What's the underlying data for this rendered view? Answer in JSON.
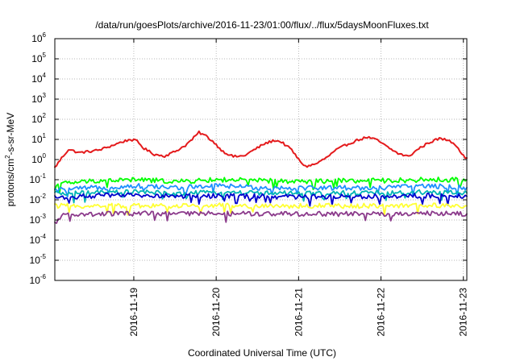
{
  "chart_data": {
    "type": "line",
    "title": "/data/run/goesPlots/archive/2016-11-23/01:00/flux/../flux/5daysMoonFluxes.txt",
    "xlabel": "Coordinated Universal Time (UTC)",
    "ylabel": "protons/cm2-s-sr-MeV",
    "ylabel_parts": {
      "pre": "protons/cm",
      "sup": "2",
      "post": "-s-sr-MeV"
    },
    "y_scale": "log",
    "ylim": [
      1e-06,
      1000000.0
    ],
    "y_ticks": [
      {
        "base": "10",
        "exp": "-6",
        "value": 1e-06
      },
      {
        "base": "10",
        "exp": "-5",
        "value": 1e-05
      },
      {
        "base": "10",
        "exp": "-4",
        "value": 0.0001
      },
      {
        "base": "10",
        "exp": "-3",
        "value": 0.001
      },
      {
        "base": "10",
        "exp": "-2",
        "value": 0.01
      },
      {
        "base": "10",
        "exp": "-1",
        "value": 0.1
      },
      {
        "base": "10",
        "exp": "0",
        "value": 1
      },
      {
        "base": "10",
        "exp": "1",
        "value": 10
      },
      {
        "base": "10",
        "exp": "2",
        "value": 100
      },
      {
        "base": "10",
        "exp": "3",
        "value": 1000
      },
      {
        "base": "10",
        "exp": "4",
        "value": 10000
      },
      {
        "base": "10",
        "exp": "5",
        "value": 100000
      },
      {
        "base": "10",
        "exp": "6",
        "value": 1000000
      }
    ],
    "xlim": [
      "2016-11-18T01:00",
      "2016-11-23T01:00"
    ],
    "x_ticks": [
      "2016-11-19",
      "2016-11-20",
      "2016-11-21",
      "2016-11-22",
      "2016-11-23"
    ],
    "grid": true,
    "legend": "none",
    "series": [
      {
        "color": "#e41a1c",
        "values": [
          [
            "2016-11-18T01:00",
            0.4
          ],
          [
            "2016-11-18T03:00",
            1.2
          ],
          [
            "2016-11-18T05:00",
            3.2
          ],
          [
            "2016-11-18T08:00",
            2.2
          ],
          [
            "2016-11-18T11:00",
            2.5
          ],
          [
            "2016-11-18T14:00",
            3.0
          ],
          [
            "2016-11-18T17:00",
            4.5
          ],
          [
            "2016-11-18T20:00",
            7.0
          ],
          [
            "2016-11-18T23:00",
            10.0
          ],
          [
            "2016-11-19T01:00",
            8.0
          ],
          [
            "2016-11-19T03:00",
            3.5
          ],
          [
            "2016-11-19T06:00",
            1.8
          ],
          [
            "2016-11-19T09:00",
            1.5
          ],
          [
            "2016-11-19T12:00",
            2.5
          ],
          [
            "2016-11-19T15:00",
            5.0
          ],
          [
            "2016-11-19T17:00",
            10.0
          ],
          [
            "2016-11-19T19:00",
            22.0
          ],
          [
            "2016-11-19T21:00",
            15.0
          ],
          [
            "2016-11-19T23:00",
            8.0
          ],
          [
            "2016-11-20T02:00",
            2.5
          ],
          [
            "2016-11-20T05:00",
            1.4
          ],
          [
            "2016-11-20T08:00",
            1.5
          ],
          [
            "2016-11-20T11:00",
            3.0
          ],
          [
            "2016-11-20T14:00",
            6.0
          ],
          [
            "2016-11-20T17:00",
            9.0
          ],
          [
            "2016-11-20T19:00",
            7.5
          ],
          [
            "2016-11-20T22:00",
            3.0
          ],
          [
            "2016-11-21T00:00",
            1.0
          ],
          [
            "2016-11-21T02:00",
            0.45
          ],
          [
            "2016-11-21T05:00",
            0.6
          ],
          [
            "2016-11-21T08:00",
            1.2
          ],
          [
            "2016-11-21T11:00",
            3.0
          ],
          [
            "2016-11-21T14:00",
            5.5
          ],
          [
            "2016-11-21T17:00",
            9.0
          ],
          [
            "2016-11-21T20:00",
            13.0
          ],
          [
            "2016-11-21T23:00",
            9.0
          ],
          [
            "2016-11-22T02:00",
            4.0
          ],
          [
            "2016-11-22T05:00",
            2.0
          ],
          [
            "2016-11-22T08:00",
            1.4
          ],
          [
            "2016-11-22T11:00",
            3.5
          ],
          [
            "2016-11-22T14:00",
            7.0
          ],
          [
            "2016-11-22T17:00",
            11.0
          ],
          [
            "2016-11-22T20:00",
            9.0
          ],
          [
            "2016-11-22T22:00",
            5.0
          ],
          [
            "2016-11-23T00:00",
            1.5
          ],
          [
            "2016-11-23T01:00",
            1.2
          ]
        ]
      },
      {
        "color": "#00ff00",
        "values": [
          [
            "2016-11-18T01:00",
            0.06
          ],
          [
            "2016-11-18T13:00",
            0.09
          ],
          [
            "2016-11-19T01:00",
            0.1
          ],
          [
            "2016-11-19T13:00",
            0.08
          ],
          [
            "2016-11-20T01:00",
            0.1
          ],
          [
            "2016-11-20T13:00",
            0.09
          ],
          [
            "2016-11-21T01:00",
            0.08
          ],
          [
            "2016-11-21T13:00",
            0.09
          ],
          [
            "2016-11-22T01:00",
            0.09
          ],
          [
            "2016-11-22T13:00",
            0.1
          ],
          [
            "2016-11-23T01:00",
            0.1
          ]
        ]
      },
      {
        "color": "#1e90ff",
        "values": [
          [
            "2016-11-18T01:00",
            0.03
          ],
          [
            "2016-11-18T13:00",
            0.04
          ],
          [
            "2016-11-19T01:00",
            0.05
          ],
          [
            "2016-11-19T13:00",
            0.04
          ],
          [
            "2016-11-20T01:00",
            0.05
          ],
          [
            "2016-11-20T13:00",
            0.04
          ],
          [
            "2016-11-21T01:00",
            0.04
          ],
          [
            "2016-11-21T13:00",
            0.04
          ],
          [
            "2016-11-22T01:00",
            0.04
          ],
          [
            "2016-11-22T13:00",
            0.05
          ],
          [
            "2016-11-23T01:00",
            0.04
          ]
        ]
      },
      {
        "color": "#00b4b4",
        "values": [
          [
            "2016-11-18T01:00",
            0.02
          ],
          [
            "2016-11-18T13:00",
            0.022
          ],
          [
            "2016-11-19T01:00",
            0.025
          ],
          [
            "2016-11-19T13:00",
            0.02
          ],
          [
            "2016-11-20T01:00",
            0.024
          ],
          [
            "2016-11-20T13:00",
            0.022
          ],
          [
            "2016-11-21T01:00",
            0.02
          ],
          [
            "2016-11-21T13:00",
            0.022
          ],
          [
            "2016-11-22T01:00",
            0.022
          ],
          [
            "2016-11-22T13:00",
            0.024
          ],
          [
            "2016-11-23T01:00",
            0.022
          ]
        ]
      },
      {
        "color": "#0000cd",
        "values": [
          [
            "2016-11-18T01:00",
            0.013
          ],
          [
            "2016-11-18T13:00",
            0.016
          ],
          [
            "2016-11-19T01:00",
            0.017
          ],
          [
            "2016-11-19T13:00",
            0.015
          ],
          [
            "2016-11-20T01:00",
            0.016
          ],
          [
            "2016-11-20T13:00",
            0.015
          ],
          [
            "2016-11-21T01:00",
            0.014
          ],
          [
            "2016-11-21T13:00",
            0.015
          ],
          [
            "2016-11-22T01:00",
            0.015
          ],
          [
            "2016-11-22T13:00",
            0.016
          ],
          [
            "2016-11-23T01:00",
            0.015
          ]
        ]
      },
      {
        "color": "#ffff33",
        "values": [
          [
            "2016-11-18T01:00",
            0.005
          ],
          [
            "2016-11-18T13:00",
            0.005
          ],
          [
            "2016-11-19T01:00",
            0.0052
          ],
          [
            "2016-11-19T13:00",
            0.005
          ],
          [
            "2016-11-20T01:00",
            0.0052
          ],
          [
            "2016-11-20T13:00",
            0.005
          ],
          [
            "2016-11-21T01:00",
            0.005
          ],
          [
            "2016-11-21T13:00",
            0.005
          ],
          [
            "2016-11-22T01:00",
            0.005
          ],
          [
            "2016-11-22T13:00",
            0.0052
          ],
          [
            "2016-11-23T01:00",
            0.005
          ]
        ]
      },
      {
        "color": "#8b3a8b",
        "values": [
          [
            "2016-11-18T01:00",
            0.0006
          ],
          [
            "2016-11-18T03:00",
            0.0018
          ],
          [
            "2016-11-18T13:00",
            0.002
          ],
          [
            "2016-11-19T01:00",
            0.0021
          ],
          [
            "2016-11-19T13:00",
            0.002
          ],
          [
            "2016-11-20T01:00",
            0.0021
          ],
          [
            "2016-11-20T13:00",
            0.002
          ],
          [
            "2016-11-21T01:00",
            0.002
          ],
          [
            "2016-11-21T13:00",
            0.002
          ],
          [
            "2016-11-22T01:00",
            0.002
          ],
          [
            "2016-11-22T13:00",
            0.0021
          ],
          [
            "2016-11-23T01:00",
            0.002
          ]
        ]
      }
    ]
  }
}
